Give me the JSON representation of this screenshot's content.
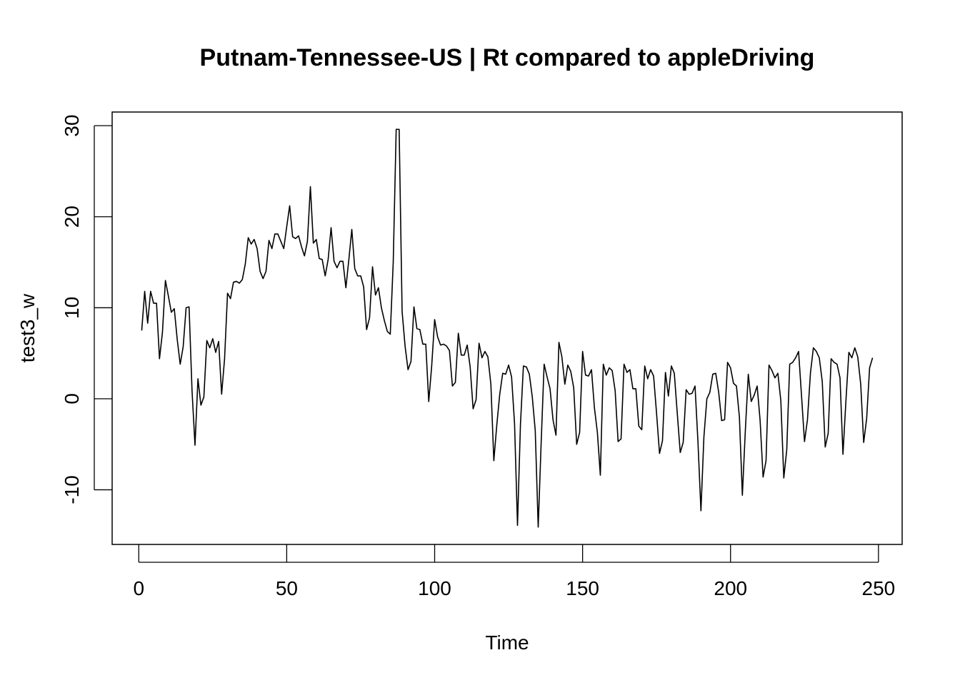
{
  "chart_data": {
    "type": "line",
    "title": "Putnam-Tennessee-US | Rt compared to appleDriving",
    "xlabel": "Time",
    "ylabel": "test3_w",
    "xlim": [
      -9,
      258
    ],
    "ylim": [
      -16,
      31.5
    ],
    "x_ticks": [
      0,
      50,
      100,
      150,
      200,
      250
    ],
    "x_tick_labels": [
      "0",
      "50",
      "100",
      "150",
      "200",
      "250"
    ],
    "y_ticks": [
      -10,
      0,
      10,
      20,
      30
    ],
    "y_tick_labels": [
      "-10",
      "0",
      "10",
      "20",
      "30"
    ],
    "grid": false,
    "series": [
      {
        "x_start": 1,
        "x_step": 1,
        "values": [
          7.5,
          11.8,
          8.3,
          11.8,
          10.5,
          10.5,
          4.4,
          7.3,
          13.0,
          11.3,
          9.5,
          9.9,
          6.5,
          3.8,
          5.7,
          10.0,
          10.1,
          0.9,
          -5.1,
          2.2,
          -0.7,
          0.2,
          6.4,
          5.6,
          6.6,
          5.1,
          6.3,
          0.5,
          4.4,
          11.6,
          11.0,
          12.8,
          12.9,
          12.7,
          13.1,
          14.8,
          17.7,
          17.0,
          17.5,
          16.5,
          14.0,
          13.2,
          14.0,
          17.4,
          16.5,
          18.1,
          18.1,
          17.3,
          16.5,
          18.9,
          21.2,
          17.8,
          17.6,
          17.9,
          16.7,
          15.7,
          17.3,
          23.3,
          17.1,
          17.5,
          15.4,
          15.3,
          13.5,
          15.3,
          18.8,
          15.1,
          14.4,
          15.1,
          15.1,
          12.2,
          15.3,
          18.6,
          14.3,
          13.5,
          13.5,
          12.3,
          7.6,
          8.9,
          14.5,
          11.4,
          12.2,
          10.0,
          8.6,
          7.4,
          7.1,
          15.0,
          29.6,
          29.6,
          9.6,
          5.8,
          3.2,
          4.1,
          10.1,
          7.7,
          7.6,
          6.0,
          6.0,
          -0.3,
          3.6,
          8.7,
          6.8,
          5.9,
          6.0,
          5.8,
          5.3,
          1.4,
          1.8,
          7.2,
          4.8,
          4.8,
          5.9,
          3.5,
          -1.1,
          -0.1,
          6.1,
          4.5,
          5.2,
          4.6,
          1.6,
          -6.8,
          -2.9,
          0.5,
          2.8,
          2.7,
          3.7,
          2.4,
          -2.7,
          -13.9,
          -2.8,
          3.6,
          3.5,
          2.7,
          0.2,
          -3.5,
          -14.1,
          -4.8,
          3.8,
          2.4,
          1.1,
          -2.3,
          -4.0,
          6.2,
          4.6,
          1.6,
          3.7,
          3.0,
          1.2,
          -5.0,
          -3.7,
          5.2,
          2.6,
          2.5,
          3.2,
          -1.0,
          -3.7,
          -8.4,
          3.8,
          2.6,
          3.4,
          3.1,
          0.9,
          -4.7,
          -4.4,
          3.8,
          2.9,
          3.2,
          1.1,
          1.1,
          -3.0,
          -3.4,
          3.6,
          2.2,
          3.2,
          2.5,
          -1.6,
          -6.0,
          -4.6,
          2.9,
          0.3,
          3.6,
          2.8,
          -1.6,
          -5.9,
          -4.8,
          1.0,
          0.5,
          0.6,
          1.4,
          -4.8,
          -12.3,
          -4.2,
          0.0,
          0.7,
          2.7,
          2.8,
          0.7,
          -2.4,
          -2.3,
          4.0,
          3.4,
          1.7,
          1.4,
          -2.0,
          -10.6,
          -3.5,
          2.7,
          -0.3,
          0.4,
          1.4,
          -2.4,
          -8.6,
          -6.8,
          3.7,
          3.1,
          2.3,
          2.8,
          -0.2,
          -8.7,
          -5.6,
          3.8,
          4.0,
          4.5,
          5.2,
          0.3,
          -4.7,
          -2.3,
          2.8,
          5.6,
          5.2,
          4.5,
          1.9,
          -5.3,
          -3.8,
          4.4,
          4.0,
          3.8,
          2.3,
          -6.1,
          -0.2,
          5.1,
          4.5,
          5.6,
          4.6,
          1.6,
          -4.8,
          -2.2,
          3.4,
          4.5
        ]
      }
    ]
  }
}
